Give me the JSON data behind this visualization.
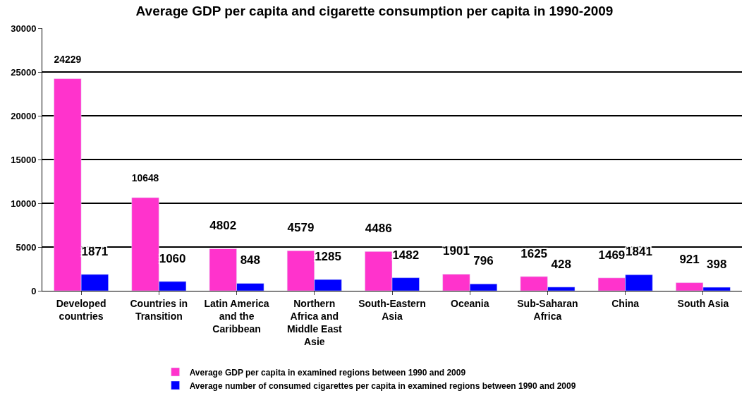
{
  "chart_data": {
    "type": "bar",
    "title": "Average GDP per capita and cigarette consumption per capita in 1990-2009",
    "categories": [
      "Developed countries",
      "Countries in Transition",
      "Latin America and the Caribbean",
      "Northern Africa and Middle East Asie",
      "South-Eastern Asia",
      "Oceania",
      "Sub-Saharan Africa",
      "China",
      "South Asia"
    ],
    "series": [
      {
        "name": "Average GDP per capita in examined regions between 1990 and 2009",
        "color": "#ff33cc",
        "values": [
          24229,
          10648,
          4802,
          4579,
          4486,
          1901,
          1625,
          1469,
          921
        ]
      },
      {
        "name": "Average number of consumed cigarettes per capita in examined regions between 1990 and 2009",
        "color": "#0000ff",
        "values": [
          1871,
          1060,
          848,
          1285,
          1482,
          796,
          428,
          1841,
          398
        ]
      }
    ],
    "ylim": [
      0,
      30000
    ],
    "yticks": [
      0,
      5000,
      10000,
      15000,
      20000,
      25000,
      30000
    ],
    "grid": "y",
    "legend": "bottom",
    "data_labels": true
  }
}
